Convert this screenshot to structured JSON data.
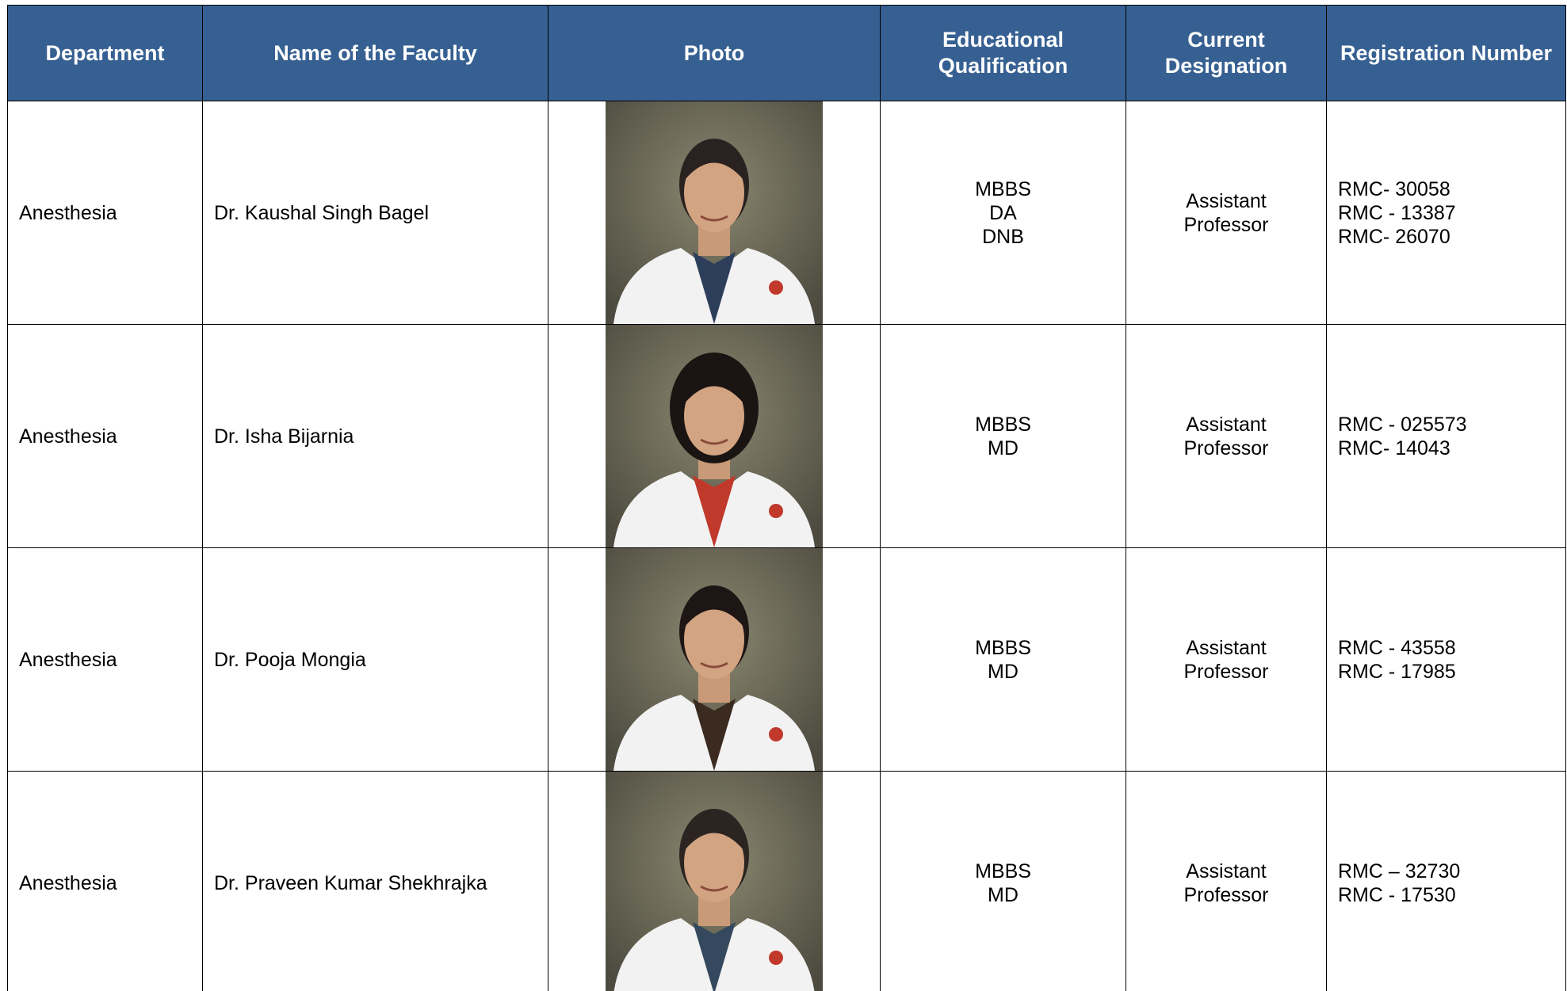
{
  "table": {
    "headers": [
      "Department",
      "Name of the Faculty",
      "Photo",
      "Educational Qualification",
      "Current Designation",
      "Registration Number"
    ],
    "rows": [
      {
        "department": "Anesthesia",
        "name": "Dr. Kaushal Singh Bagel",
        "qualification": [
          "MBBS",
          "DA",
          "DNB"
        ],
        "designation": [
          "Assistant",
          "Professor"
        ],
        "registration": [
          "RMC- 30058",
          "RMC - 13387",
          "RMC- 26070"
        ]
      },
      {
        "department": "Anesthesia",
        "name": "Dr. Isha Bijarnia",
        "qualification": [
          "MBBS",
          "MD"
        ],
        "designation": [
          "Assistant",
          "Professor"
        ],
        "registration": [
          "RMC - 025573",
          "RMC- 14043"
        ]
      },
      {
        "department": "Anesthesia",
        "name": "Dr. Pooja Mongia",
        "qualification": [
          "MBBS",
          "MD"
        ],
        "designation": [
          "Assistant",
          "Professor"
        ],
        "registration": [
          "RMC - 43558",
          "RMC - 17985"
        ]
      },
      {
        "department": "Anesthesia",
        "name": "Dr. Praveen Kumar Shekhrajka",
        "qualification": [
          "MBBS",
          "MD"
        ],
        "designation": [
          "Assistant",
          "Professor"
        ],
        "registration": [
          "RMC – 32730",
          "RMC - 17530"
        ]
      }
    ]
  }
}
